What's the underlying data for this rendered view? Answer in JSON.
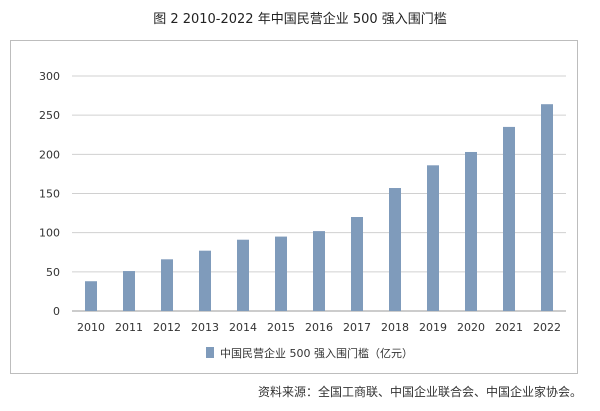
{
  "title": "图 2  2010-2022 年中国民营企业 500 强入围门槛",
  "source": "资料来源：全国工商联、中国企业联合会、中国企业家协会。",
  "colors": {
    "bar": "#7f9bbb",
    "grid": "#d0d0d0",
    "axis": "#999999",
    "text": "#333333"
  },
  "chart_data": {
    "type": "bar",
    "categories": [
      "2010",
      "2011",
      "2012",
      "2013",
      "2014",
      "2015",
      "2016",
      "2017",
      "2018",
      "2019",
      "2020",
      "2021",
      "2022"
    ],
    "series": [
      {
        "name": "中国民营企业 500 强入围门槛（亿元）",
        "values": [
          38,
          51,
          66,
          77,
          91,
          95,
          102,
          120,
          157,
          186,
          203,
          235,
          264
        ]
      }
    ],
    "yticks": [
      0,
      50,
      100,
      150,
      200,
      250,
      300
    ],
    "ylim": [
      0,
      300
    ],
    "grid": true,
    "legend": "bottom-center",
    "xlabel": "",
    "ylabel": ""
  }
}
